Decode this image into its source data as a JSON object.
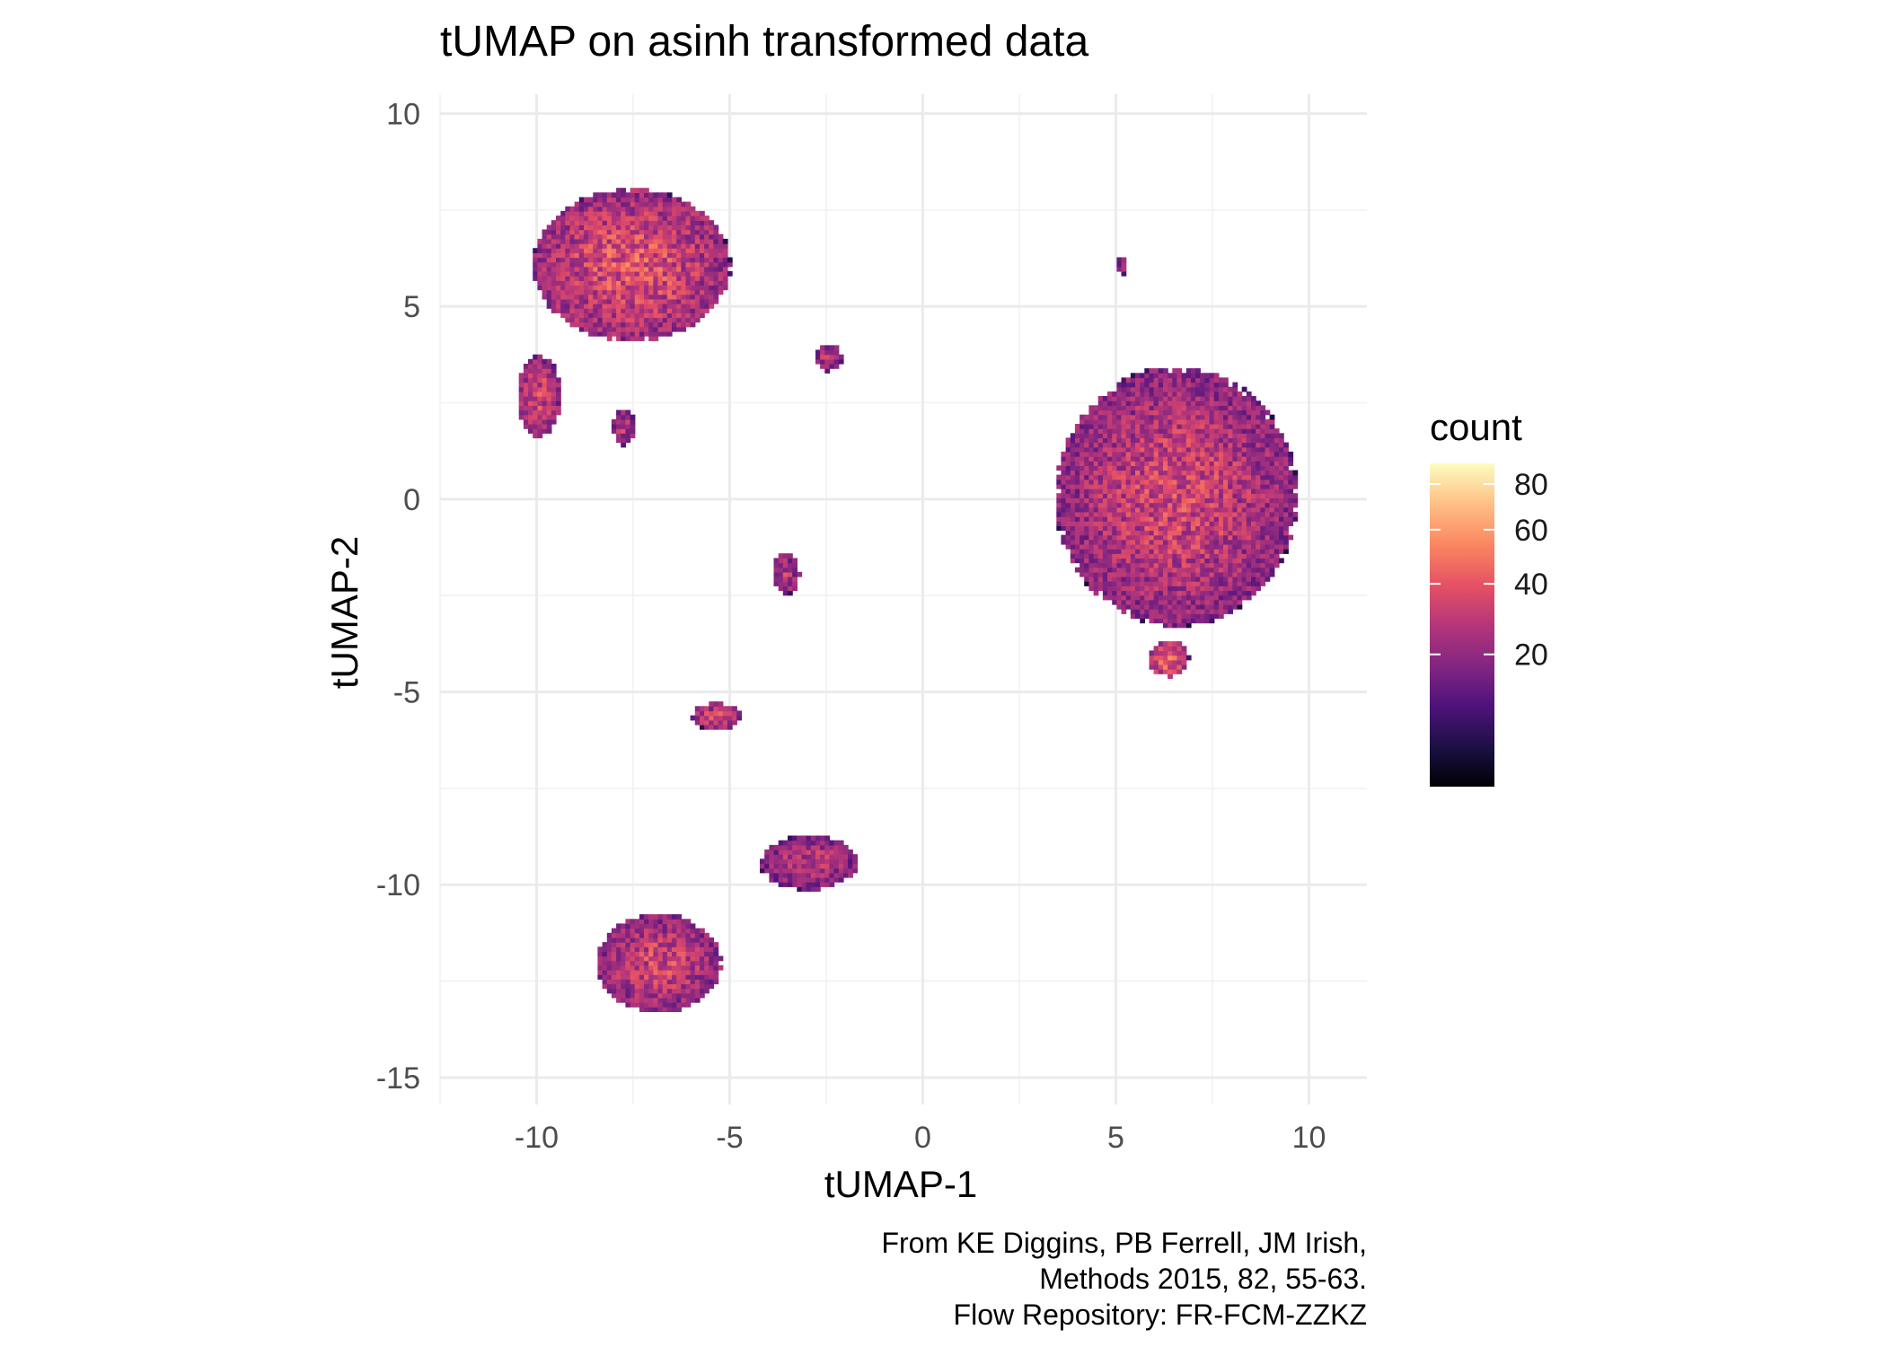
{
  "chart_data": {
    "type": "heatmap",
    "subtype": "2d-bin-density",
    "title": "tUMAP on asinh transformed data",
    "xlabel": "tUMAP-1",
    "ylabel": "tUMAP-2",
    "xlim": [
      -12.5,
      11.5
    ],
    "ylim": [
      -15.7,
      10.5
    ],
    "x_ticks": [
      -10,
      -5,
      0,
      5,
      10
    ],
    "x_tick_labels": [
      "-10",
      "-5",
      "0",
      "5",
      "10"
    ],
    "y_ticks": [
      -15,
      -10,
      -5,
      0,
      5,
      10
    ],
    "y_tick_labels": [
      "-15",
      "-10",
      "-5",
      "0",
      "5",
      "10"
    ],
    "grid": true,
    "legend": {
      "title": "count",
      "position": "right",
      "scale": "sqrt",
      "range": [
        1,
        90
      ],
      "breaks": [
        20,
        40,
        60,
        80
      ],
      "break_labels": [
        "20",
        "40",
        "60",
        "80"
      ],
      "colormap": "magma",
      "colors": [
        "#000004",
        "#1c1044",
        "#4f127b",
        "#812581",
        "#b5367a",
        "#e55064",
        "#fb8761",
        "#fec287",
        "#fcfdbf"
      ]
    },
    "clusters": [
      {
        "name": "upper-left-large",
        "cx": -7.6,
        "cy": 6.0,
        "sx": 2.2,
        "sy": 1.7,
        "peak": 40
      },
      {
        "name": "upper-left-tail",
        "cx": -10.0,
        "cy": 2.6,
        "sx": 0.5,
        "sy": 0.9,
        "peak": 35
      },
      {
        "name": "upper-left-small",
        "cx": -7.8,
        "cy": 1.8,
        "sx": 0.25,
        "sy": 0.4,
        "peak": 30
      },
      {
        "name": "upper-left-right-blob",
        "cx": -2.5,
        "cy": 3.6,
        "sx": 0.3,
        "sy": 0.3,
        "peak": 30
      },
      {
        "name": "top-right-dot",
        "cx": 5.1,
        "cy": 6.0,
        "sx": 0.12,
        "sy": 0.2,
        "peak": 25
      },
      {
        "name": "right-large",
        "cx": 6.5,
        "cy": 0.0,
        "sx": 2.7,
        "sy": 2.9,
        "peak": 35
      },
      {
        "name": "right-bottom-tip",
        "cx": 6.3,
        "cy": -4.2,
        "sx": 0.45,
        "sy": 0.4,
        "peak": 45
      },
      {
        "name": "center-small",
        "cx": -3.6,
        "cy": -2.0,
        "sx": 0.3,
        "sy": 0.45,
        "peak": 30
      },
      {
        "name": "center-low",
        "cx": -5.4,
        "cy": -5.7,
        "sx": 0.55,
        "sy": 0.3,
        "peak": 35
      },
      {
        "name": "lower-right-small",
        "cx": -3.0,
        "cy": -9.5,
        "sx": 1.1,
        "sy": 0.6,
        "peak": 30
      },
      {
        "name": "lower-left",
        "cx": -6.9,
        "cy": -12.1,
        "sx": 1.4,
        "sy": 1.1,
        "peak": 35
      }
    ]
  },
  "caption": {
    "lines": [
      "From KE Diggins, PB Ferrell, JM Irish,",
      "Methods 2015, 82, 55-63.",
      "Flow Repository: FR-FCM-ZZKZ"
    ]
  }
}
